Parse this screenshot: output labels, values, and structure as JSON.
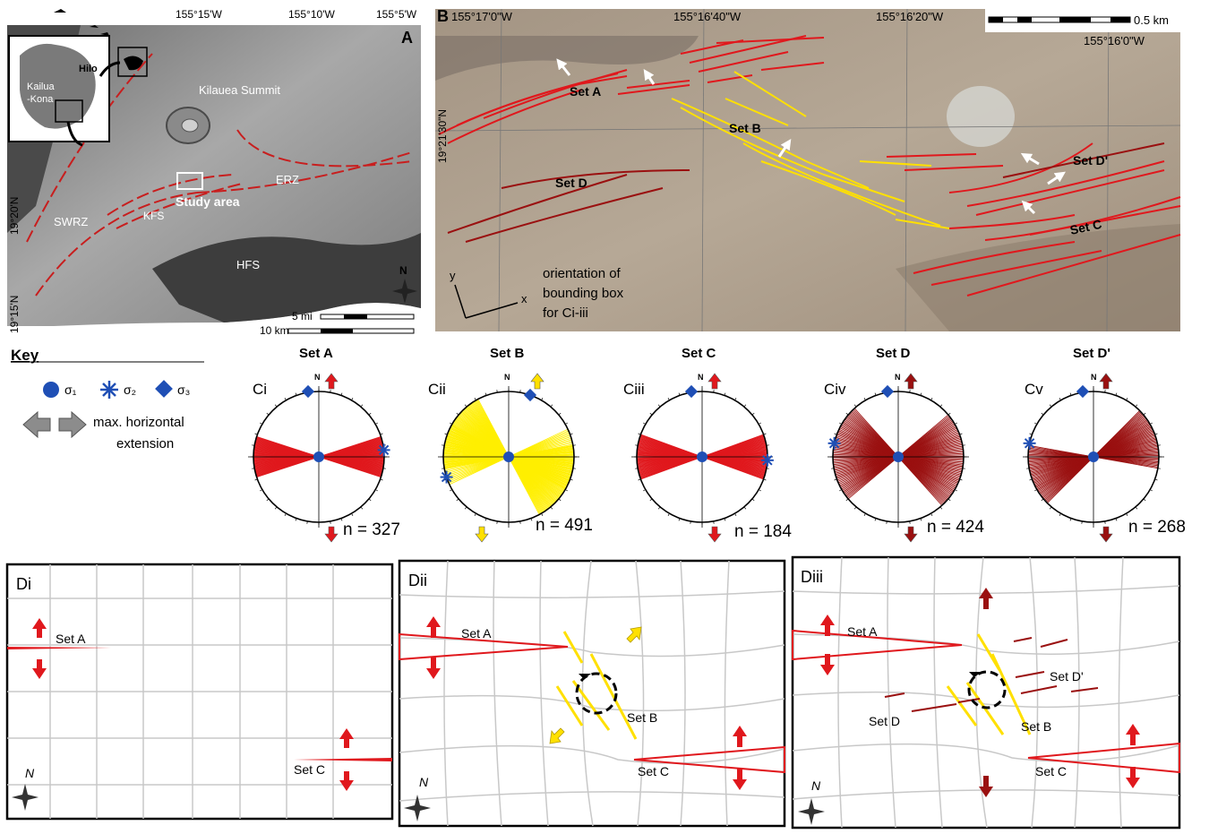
{
  "panel_a": {
    "label": "A",
    "top_lon_labels": [
      "155°15'W",
      "155°10'W",
      "155°5'W"
    ],
    "left_lat_labels": [
      "19°20'N",
      "19°15'N"
    ],
    "inset_labels": {
      "kailua": "Kailua",
      "kona": "-Kona",
      "hilo": "Hilo"
    },
    "features": {
      "summit": "Kilauea Summit",
      "erz": "ERZ",
      "swrz": "SWRZ",
      "kfs": "KFS",
      "hfs": "HFS",
      "study_area": "Study area"
    },
    "north": "N",
    "scale_mi": "5 mi",
    "scale_km": "10 km"
  },
  "panel_b": {
    "label": "B",
    "top_lon_labels": [
      "155°17'0\"W",
      "155°16'40\"W",
      "155°16'20\"W"
    ],
    "right_lon_label": "155°16'0\"W",
    "lat_label": "19°21'30\"N",
    "scale": "0.5 km",
    "sets": {
      "a": "Set A",
      "b": "Set B",
      "c": "Set C",
      "d": "Set D",
      "dprime": "Set D'"
    },
    "axis_y": "y",
    "axis_x": "x",
    "orientation_note": [
      "orientation of",
      "bounding box",
      "for Ci-iii"
    ]
  },
  "key": {
    "title": "Key",
    "sigma1": "σ₁",
    "sigma2": "σ₂",
    "sigma3": "σ₃",
    "extension": [
      "max. horizontal",
      "extension"
    ]
  },
  "rose_diagrams": [
    {
      "id": "Ci",
      "title": "Set A",
      "n": "n = 327",
      "north": "N",
      "color": "#e0181d"
    },
    {
      "id": "Cii",
      "title": "Set B",
      "n": "n = 491",
      "north": "N",
      "color": "#ffef00"
    },
    {
      "id": "Ciii",
      "title": "Set C",
      "n": "n = 184",
      "north": "N",
      "color": "#e0181d"
    },
    {
      "id": "Civ",
      "title": "Set D",
      "n": "n = 424",
      "north": "N",
      "color": "#9a1010"
    },
    {
      "id": "Cv",
      "title": "Set D'",
      "n": "n = 268",
      "north": "N",
      "color": "#9a1010"
    }
  ],
  "panels_d": [
    {
      "id": "Di",
      "labels": {
        "set_a": "Set A",
        "set_c": "Set C"
      },
      "north": "N"
    },
    {
      "id": "Dii",
      "labels": {
        "set_a": "Set A",
        "set_b": "Set B",
        "set_c": "Set C"
      },
      "north": "N"
    },
    {
      "id": "Diii",
      "labels": {
        "set_a": "Set A",
        "set_b": "Set B",
        "set_c": "Set C",
        "set_d": "Set D",
        "set_dprime": "Set D'"
      },
      "north": "N"
    }
  ],
  "colors": {
    "red": "#e0181d",
    "darkred": "#9a1010",
    "yellow": "#ffe000",
    "blue": "#1f4fb5",
    "grid": "#c8c8c8",
    "gray_arrow": "#8c8c8c"
  }
}
